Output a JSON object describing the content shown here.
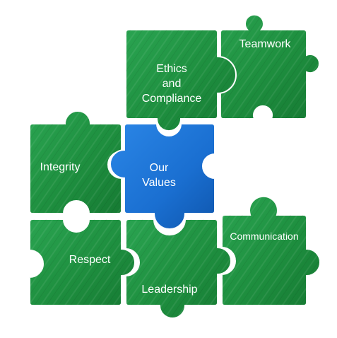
{
  "colors": {
    "green": "#1e8f3f",
    "green_dark": "#156f2f",
    "green_light": "#2aa451",
    "blue": "#1a6fd1",
    "blue_dark": "#0f56ad",
    "blue_light": "#2b86e6",
    "text": "#ffffff"
  },
  "pieces": {
    "teamwork": {
      "label": "Teamwork"
    },
    "ethics": {
      "label_lines": [
        "Ethics",
        "and",
        "Compliance"
      ]
    },
    "integrity": {
      "label": "Integrity"
    },
    "our_values": {
      "label_lines": [
        "Our",
        "Values"
      ]
    },
    "respect": {
      "label": "Respect"
    },
    "leadership": {
      "label": "Leadership"
    },
    "communication": {
      "label": "Communication"
    }
  }
}
